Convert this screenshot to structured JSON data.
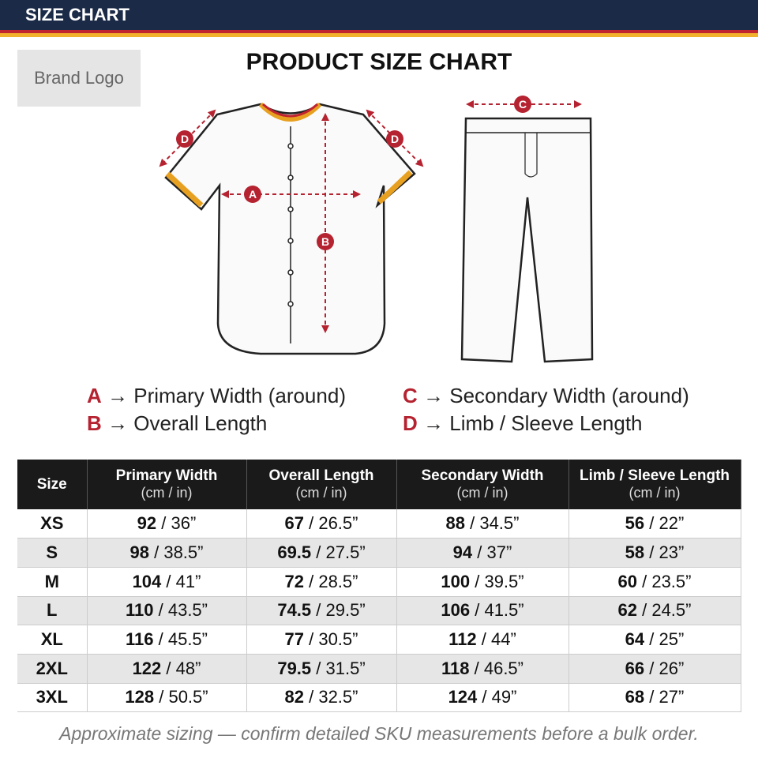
{
  "header": {
    "title": "SIZE CHART"
  },
  "brand": {
    "logo": "Brand Logo"
  },
  "title": "PRODUCT SIZE CHART",
  "diagram": {
    "labels": {
      "a": "A",
      "b": "B",
      "c": "C",
      "d1": "D",
      "d2": "D"
    }
  },
  "legend": [
    {
      "key": "A",
      "text": "→ Primary Width (around)"
    },
    {
      "key": "B",
      "text": "→ Overall Length"
    },
    {
      "key": "C",
      "text": "→ Secondary Width (around)"
    },
    {
      "key": "D",
      "text": "→ Limb / Sleeve Length"
    }
  ],
  "table": {
    "columns": [
      {
        "name": "Size"
      },
      {
        "name": "Primary Width",
        "unit": "(cm / in)"
      },
      {
        "name": "Overall Length",
        "unit": "(cm / in)"
      },
      {
        "name": "Secondary Width",
        "unit": "(cm / in)"
      },
      {
        "name": "Limb / Sleeve Length",
        "unit": "(cm / in)"
      }
    ],
    "rows": [
      {
        "size": "XS",
        "cells": [
          {
            "cm": "92",
            "in": "/ 36”"
          },
          {
            "cm": "67",
            "in": "/ 26.5”"
          },
          {
            "cm": "88",
            "in": "/ 34.5”"
          },
          {
            "cm": "56",
            "in": "/ 22”"
          }
        ]
      },
      {
        "size": "S",
        "cells": [
          {
            "cm": "98",
            "in": "/ 38.5”"
          },
          {
            "cm": "69.5",
            "in": "/ 27.5”"
          },
          {
            "cm": "94",
            "in": "/ 37”"
          },
          {
            "cm": "58",
            "in": "/ 23”"
          }
        ]
      },
      {
        "size": "M",
        "cells": [
          {
            "cm": "104",
            "in": "/ 41”"
          },
          {
            "cm": "72",
            "in": "/ 28.5”"
          },
          {
            "cm": "100",
            "in": "/ 39.5”"
          },
          {
            "cm": "60",
            "in": "/ 23.5”"
          }
        ]
      },
      {
        "size": "L",
        "cells": [
          {
            "cm": "110",
            "in": "/ 43.5”"
          },
          {
            "cm": "74.5",
            "in": "/ 29.5”"
          },
          {
            "cm": "106",
            "in": "/ 41.5”"
          },
          {
            "cm": "62",
            "in": "/ 24.5”"
          }
        ]
      },
      {
        "size": "XL",
        "cells": [
          {
            "cm": "116",
            "in": "/ 45.5”"
          },
          {
            "cm": "77",
            "in": "/ 30.5”"
          },
          {
            "cm": "112",
            "in": "/ 44”"
          },
          {
            "cm": "64",
            "in": "/ 25”"
          }
        ]
      },
      {
        "size": "2XL",
        "cells": [
          {
            "cm": "122",
            "in": "/ 48”"
          },
          {
            "cm": "79.5",
            "in": "/ 31.5”"
          },
          {
            "cm": "118",
            "in": "/ 46.5”"
          },
          {
            "cm": "66",
            "in": "/ 26”"
          }
        ]
      },
      {
        "size": "3XL",
        "cells": [
          {
            "cm": "128",
            "in": "/ 50.5”"
          },
          {
            "cm": "82",
            "in": "/ 32.5”"
          },
          {
            "cm": "124",
            "in": "/ 49”"
          },
          {
            "cm": "68",
            "in": "/ 27”"
          }
        ]
      }
    ]
  },
  "footer": {
    "note": "Approximate sizing — confirm detailed SKU measurements before a bulk order."
  }
}
